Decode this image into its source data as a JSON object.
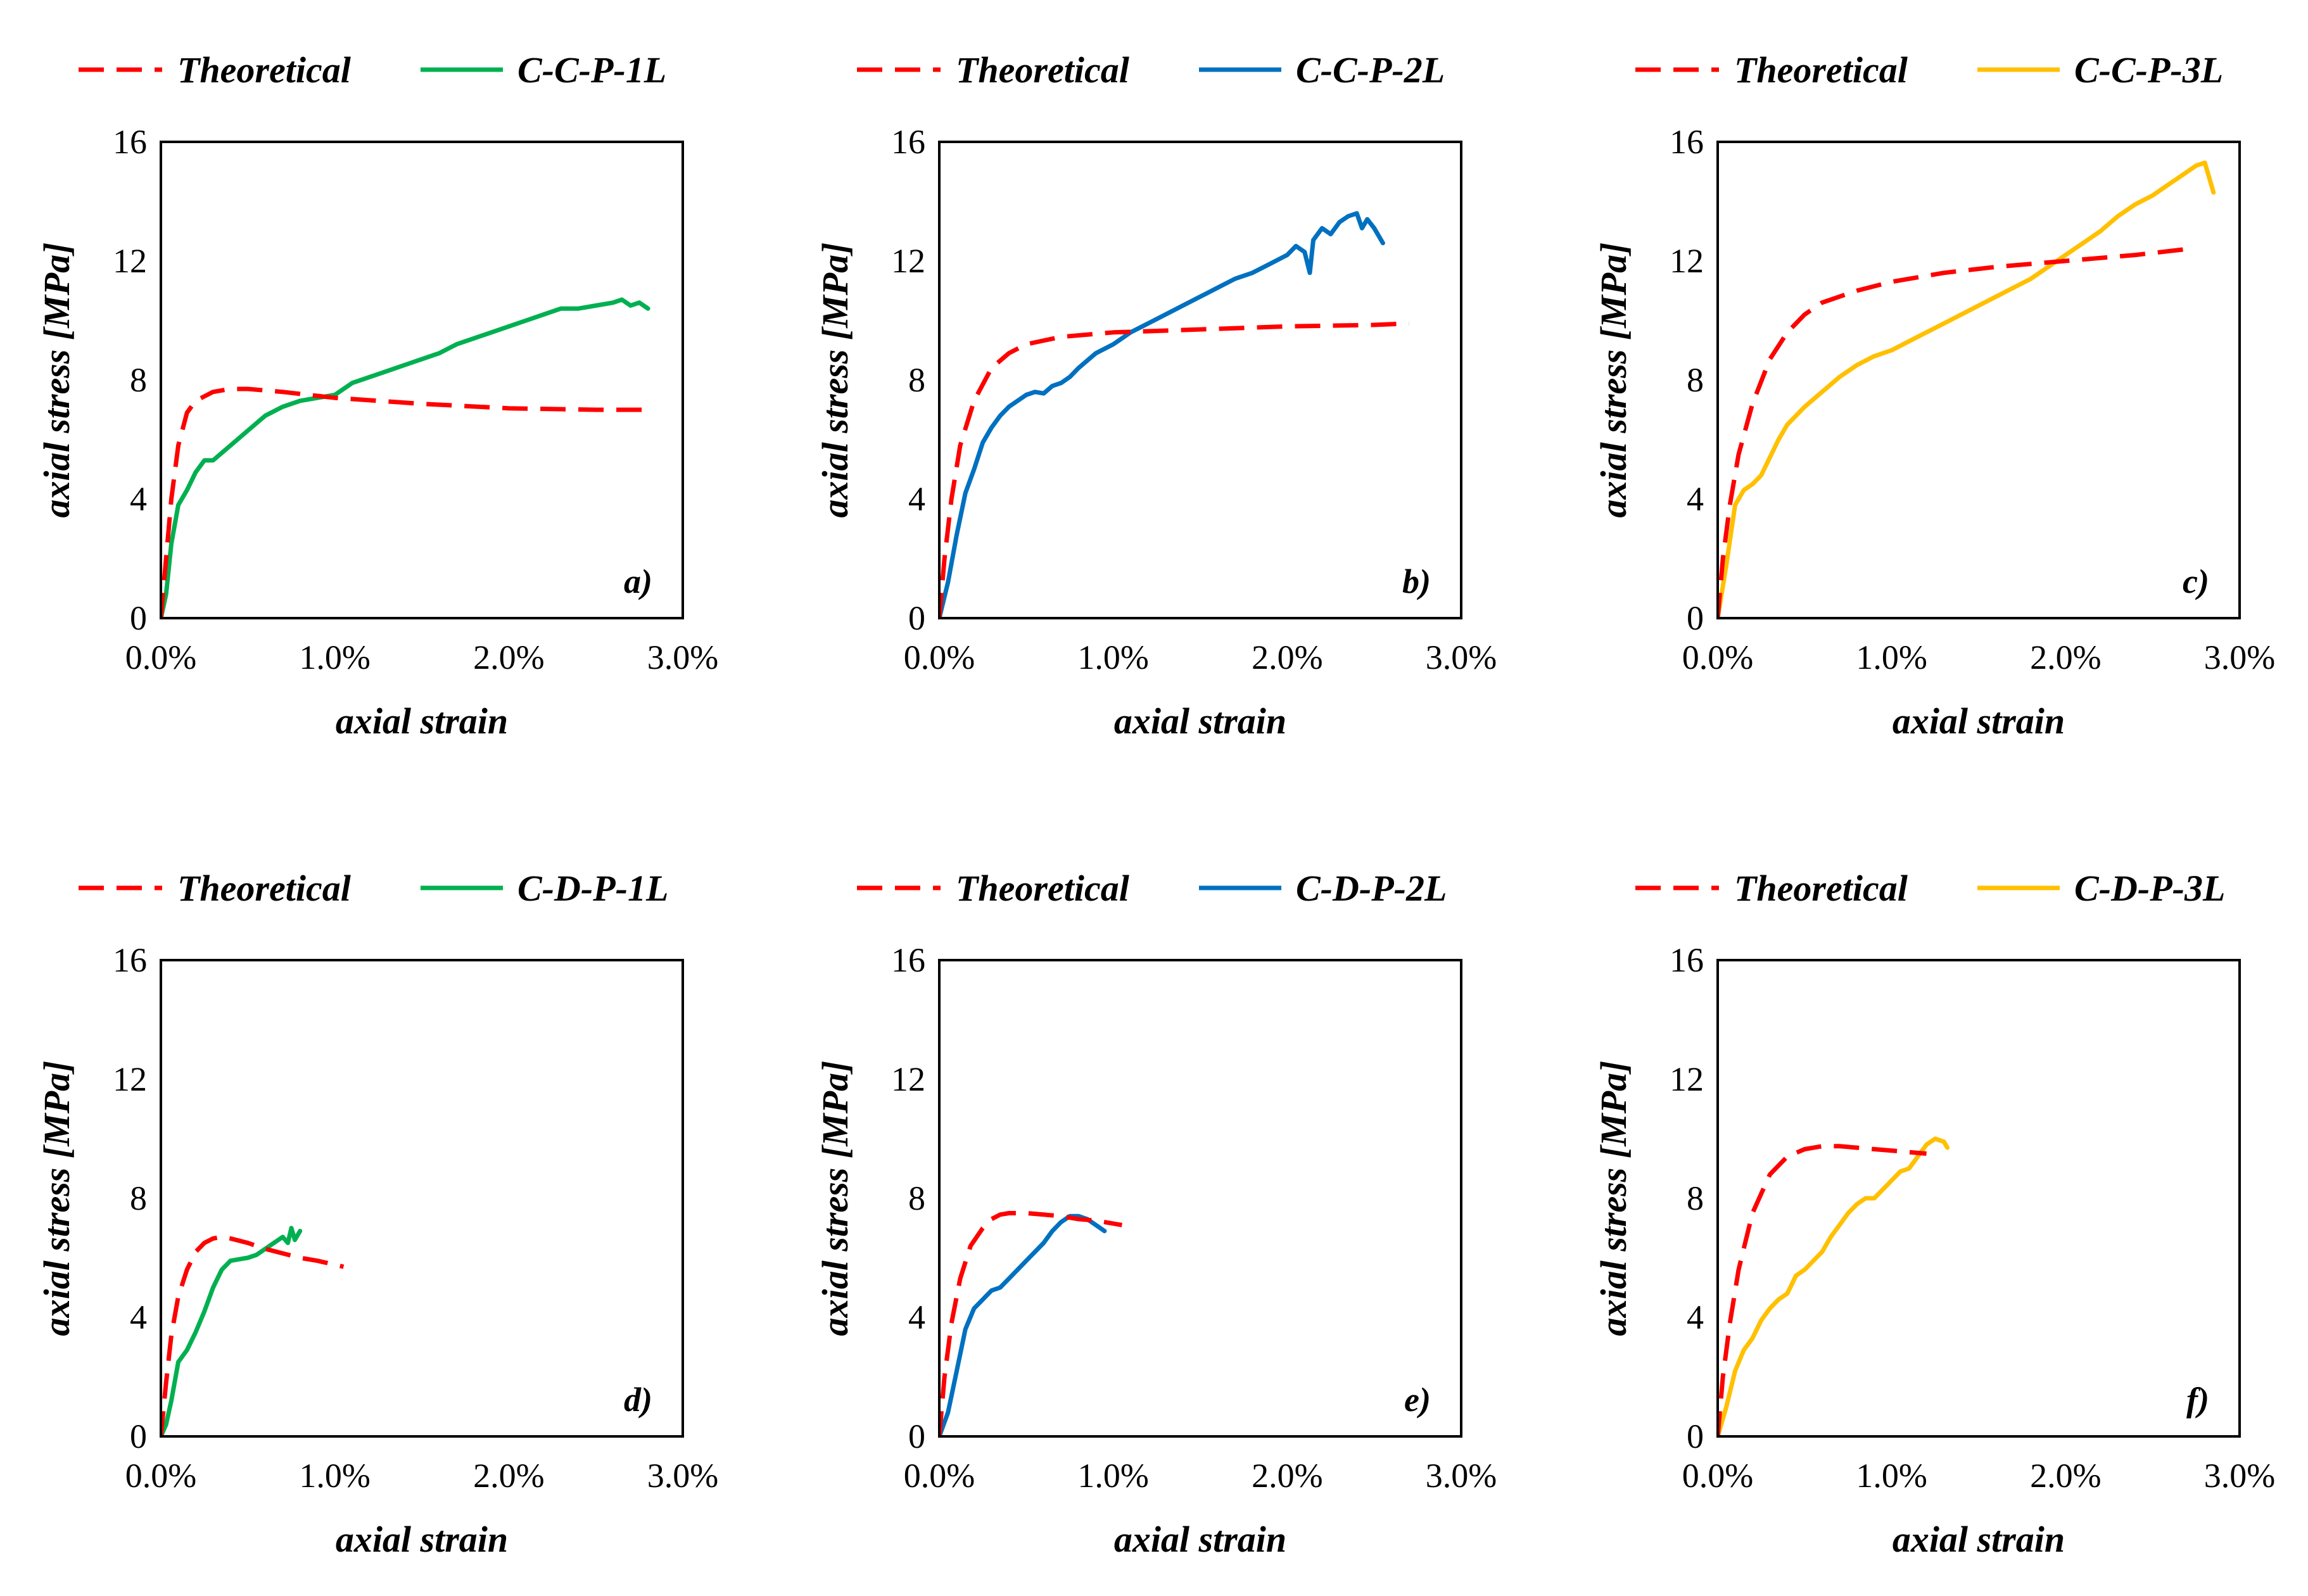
{
  "chart_data": [
    {
      "type": "line",
      "panel_label": "a)",
      "xlabel": "axial strain",
      "ylabel": "axial stress [MPa]",
      "xlim": [
        0,
        3.0
      ],
      "ylim": [
        0,
        16
      ],
      "x_tick_labels": [
        "0.0%",
        "1.0%",
        "2.0%",
        "3.0%"
      ],
      "y_tick_labels": [
        "0",
        "4",
        "8",
        "12",
        "16"
      ],
      "legend": [
        "Theoretical",
        "C-C-P-1L"
      ],
      "series": [
        {
          "name": "Theoretical",
          "color": "#ff0000",
          "style": "dashed",
          "x": [
            0,
            0.03,
            0.06,
            0.1,
            0.15,
            0.2,
            0.3,
            0.4,
            0.5,
            0.7,
            1.0,
            1.5,
            2.0,
            2.5,
            2.78
          ],
          "y": [
            0,
            2.0,
            4.0,
            5.8,
            6.9,
            7.3,
            7.6,
            7.7,
            7.7,
            7.6,
            7.4,
            7.2,
            7.05,
            7.0,
            7.0
          ]
        },
        {
          "name": "C-C-P-1L",
          "color": "#00b050",
          "style": "solid",
          "x": [
            0,
            0.03,
            0.06,
            0.1,
            0.15,
            0.2,
            0.25,
            0.3,
            0.4,
            0.5,
            0.6,
            0.7,
            0.8,
            0.9,
            1.0,
            1.1,
            1.2,
            1.3,
            1.4,
            1.5,
            1.6,
            1.7,
            1.8,
            1.9,
            2.0,
            2.1,
            2.2,
            2.3,
            2.4,
            2.5,
            2.6,
            2.65,
            2.7,
            2.75,
            2.8
          ],
          "y": [
            0,
            0.8,
            2.5,
            3.8,
            4.3,
            4.9,
            5.3,
            5.3,
            5.8,
            6.3,
            6.8,
            7.1,
            7.3,
            7.4,
            7.5,
            7.9,
            8.1,
            8.3,
            8.5,
            8.7,
            8.9,
            9.2,
            9.4,
            9.6,
            9.8,
            10.0,
            10.2,
            10.4,
            10.4,
            10.5,
            10.6,
            10.7,
            10.5,
            10.6,
            10.4
          ]
        }
      ]
    },
    {
      "type": "line",
      "panel_label": "b)",
      "xlabel": "axial strain",
      "ylabel": "axial stress [MPa]",
      "xlim": [
        0,
        3.0
      ],
      "ylim": [
        0,
        16
      ],
      "x_tick_labels": [
        "0.0%",
        "1.0%",
        "2.0%",
        "3.0%"
      ],
      "y_tick_labels": [
        "0",
        "4",
        "8",
        "12",
        "16"
      ],
      "legend": [
        "Theoretical",
        "C-C-P-2L"
      ],
      "series": [
        {
          "name": "Theoretical",
          "color": "#ff0000",
          "style": "dashed",
          "x": [
            0,
            0.03,
            0.07,
            0.12,
            0.2,
            0.3,
            0.4,
            0.5,
            0.7,
            1.0,
            1.5,
            2.0,
            2.5,
            2.7
          ],
          "y": [
            0,
            2.0,
            4.0,
            5.8,
            7.3,
            8.4,
            8.9,
            9.2,
            9.45,
            9.6,
            9.7,
            9.8,
            9.85,
            9.9
          ]
        },
        {
          "name": "C-C-P-2L",
          "color": "#0070c0",
          "style": "solid",
          "x": [
            0,
            0.05,
            0.1,
            0.15,
            0.2,
            0.25,
            0.3,
            0.35,
            0.4,
            0.45,
            0.5,
            0.55,
            0.6,
            0.65,
            0.7,
            0.75,
            0.8,
            0.9,
            1.0,
            1.1,
            1.2,
            1.3,
            1.4,
            1.5,
            1.6,
            1.7,
            1.8,
            1.9,
            2.0,
            2.05,
            2.1,
            2.13,
            2.15,
            2.2,
            2.25,
            2.3,
            2.35,
            2.4,
            2.43,
            2.46,
            2.5,
            2.55
          ],
          "y": [
            0,
            1.2,
            2.8,
            4.2,
            5.0,
            5.9,
            6.4,
            6.8,
            7.1,
            7.3,
            7.5,
            7.6,
            7.55,
            7.8,
            7.9,
            8.1,
            8.4,
            8.9,
            9.2,
            9.6,
            9.9,
            10.2,
            10.5,
            10.8,
            11.1,
            11.4,
            11.6,
            11.9,
            12.2,
            12.5,
            12.3,
            11.6,
            12.7,
            13.1,
            12.9,
            13.3,
            13.5,
            13.6,
            13.1,
            13.4,
            13.1,
            12.6
          ]
        }
      ]
    },
    {
      "type": "line",
      "panel_label": "c)",
      "xlabel": "axial strain",
      "ylabel": "axial stress [MPa]",
      "xlim": [
        0,
        3.0
      ],
      "ylim": [
        0,
        16
      ],
      "x_tick_labels": [
        "0.0%",
        "1.0%",
        "2.0%",
        "3.0%"
      ],
      "y_tick_labels": [
        "0",
        "4",
        "8",
        "12",
        "16"
      ],
      "legend": [
        "Theoretical",
        "C-C-P-3L"
      ],
      "series": [
        {
          "name": "Theoretical",
          "color": "#ff0000",
          "style": "dashed",
          "x": [
            0,
            0.03,
            0.07,
            0.12,
            0.2,
            0.3,
            0.4,
            0.5,
            0.6,
            0.8,
            1.0,
            1.3,
            1.6,
            2.0,
            2.4,
            2.7
          ],
          "y": [
            0,
            2.0,
            3.8,
            5.5,
            7.2,
            8.7,
            9.6,
            10.2,
            10.6,
            11.0,
            11.3,
            11.6,
            11.8,
            12.0,
            12.2,
            12.4
          ]
        },
        {
          "name": "C-C-P-3L",
          "color": "#ffc000",
          "style": "solid",
          "x": [
            0,
            0.05,
            0.1,
            0.15,
            0.2,
            0.25,
            0.3,
            0.35,
            0.4,
            0.5,
            0.6,
            0.7,
            0.8,
            0.9,
            1.0,
            1.1,
            1.2,
            1.3,
            1.4,
            1.5,
            1.6,
            1.7,
            1.8,
            1.9,
            2.0,
            2.1,
            2.2,
            2.3,
            2.4,
            2.5,
            2.6,
            2.65,
            2.7,
            2.75,
            2.8,
            2.85
          ],
          "y": [
            0,
            1.8,
            3.8,
            4.3,
            4.5,
            4.8,
            5.4,
            6.0,
            6.5,
            7.1,
            7.6,
            8.1,
            8.5,
            8.8,
            9.0,
            9.3,
            9.6,
            9.9,
            10.2,
            10.5,
            10.8,
            11.1,
            11.4,
            11.8,
            12.2,
            12.6,
            13.0,
            13.5,
            13.9,
            14.2,
            14.6,
            14.8,
            15.0,
            15.2,
            15.3,
            14.3
          ]
        }
      ]
    },
    {
      "type": "line",
      "panel_label": "d)",
      "xlabel": "axial strain",
      "ylabel": "axial stress [MPa]",
      "xlim": [
        0,
        3.0
      ],
      "ylim": [
        0,
        16
      ],
      "x_tick_labels": [
        "0.0%",
        "1.0%",
        "2.0%",
        "3.0%"
      ],
      "y_tick_labels": [
        "0",
        "4",
        "8",
        "12",
        "16"
      ],
      "legend": [
        "Theoretical",
        "C-D-P-1L"
      ],
      "series": [
        {
          "name": "Theoretical",
          "color": "#ff0000",
          "style": "dashed",
          "x": [
            0,
            0.03,
            0.06,
            0.1,
            0.15,
            0.2,
            0.25,
            0.3,
            0.35,
            0.4,
            0.5,
            0.6,
            0.7,
            0.8,
            0.9,
            1.05
          ],
          "y": [
            0,
            1.8,
            3.4,
            4.7,
            5.6,
            6.2,
            6.5,
            6.65,
            6.7,
            6.65,
            6.5,
            6.3,
            6.15,
            6.0,
            5.9,
            5.7
          ]
        },
        {
          "name": "C-D-P-1L",
          "color": "#00b050",
          "style": "solid",
          "x": [
            0,
            0.03,
            0.06,
            0.1,
            0.15,
            0.2,
            0.25,
            0.3,
            0.35,
            0.4,
            0.45,
            0.5,
            0.55,
            0.6,
            0.65,
            0.7,
            0.73,
            0.75,
            0.77,
            0.8
          ],
          "y": [
            0,
            0.4,
            1.2,
            2.5,
            2.9,
            3.5,
            4.2,
            5.0,
            5.6,
            5.9,
            5.95,
            6.0,
            6.1,
            6.3,
            6.5,
            6.7,
            6.5,
            7.0,
            6.6,
            6.9
          ]
        }
      ]
    },
    {
      "type": "line",
      "panel_label": "e)",
      "xlabel": "axial strain",
      "ylabel": "axial stress [MPa]",
      "xlim": [
        0,
        3.0
      ],
      "ylim": [
        0,
        16
      ],
      "x_tick_labels": [
        "0.0%",
        "1.0%",
        "2.0%",
        "3.0%"
      ],
      "y_tick_labels": [
        "0",
        "4",
        "8",
        "12",
        "16"
      ],
      "legend": [
        "Theoretical",
        "C-D-P-2L"
      ],
      "series": [
        {
          "name": "Theoretical",
          "color": "#ff0000",
          "style": "dashed",
          "x": [
            0,
            0.03,
            0.07,
            0.12,
            0.18,
            0.25,
            0.3,
            0.35,
            0.4,
            0.5,
            0.6,
            0.7,
            0.8,
            0.9,
            1.05
          ],
          "y": [
            0,
            2.0,
            3.8,
            5.3,
            6.4,
            7.0,
            7.3,
            7.45,
            7.5,
            7.5,
            7.45,
            7.4,
            7.3,
            7.25,
            7.1
          ]
        },
        {
          "name": "C-D-P-2L",
          "color": "#0070c0",
          "style": "solid",
          "x": [
            0,
            0.05,
            0.1,
            0.15,
            0.2,
            0.25,
            0.3,
            0.35,
            0.4,
            0.45,
            0.5,
            0.55,
            0.6,
            0.65,
            0.7,
            0.75,
            0.8,
            0.85,
            0.9,
            0.95
          ],
          "y": [
            0,
            0.8,
            2.2,
            3.6,
            4.3,
            4.6,
            4.9,
            5.0,
            5.3,
            5.6,
            5.9,
            6.2,
            6.5,
            6.9,
            7.2,
            7.4,
            7.4,
            7.3,
            7.1,
            6.9
          ]
        }
      ]
    },
    {
      "type": "line",
      "panel_label": "f)",
      "xlabel": "axial strain",
      "ylabel": "axial stress [MPa]",
      "xlim": [
        0,
        3.0
      ],
      "ylim": [
        0,
        16
      ],
      "x_tick_labels": [
        "0.0%",
        "1.0%",
        "2.0%",
        "3.0%"
      ],
      "y_tick_labels": [
        "0",
        "4",
        "8",
        "12",
        "16"
      ],
      "legend": [
        "Theoretical",
        "C-D-P-3L"
      ],
      "series": [
        {
          "name": "Theoretical",
          "color": "#ff0000",
          "style": "dashed",
          "x": [
            0,
            0.03,
            0.07,
            0.12,
            0.2,
            0.3,
            0.4,
            0.5,
            0.6,
            0.7,
            0.8,
            0.9,
            1.0,
            1.2
          ],
          "y": [
            0,
            2.0,
            3.8,
            5.6,
            7.5,
            8.8,
            9.4,
            9.65,
            9.75,
            9.75,
            9.7,
            9.65,
            9.6,
            9.5
          ]
        },
        {
          "name": "C-D-P-3L",
          "color": "#ffc000",
          "style": "solid",
          "x": [
            0,
            0.05,
            0.1,
            0.15,
            0.2,
            0.25,
            0.3,
            0.35,
            0.4,
            0.45,
            0.5,
            0.55,
            0.6,
            0.65,
            0.7,
            0.75,
            0.8,
            0.85,
            0.9,
            0.95,
            1.0,
            1.05,
            1.1,
            1.15,
            1.2,
            1.25,
            1.3,
            1.32
          ],
          "y": [
            0,
            1.0,
            2.2,
            2.9,
            3.3,
            3.9,
            4.3,
            4.6,
            4.8,
            5.4,
            5.6,
            5.9,
            6.2,
            6.7,
            7.1,
            7.5,
            7.8,
            8.0,
            8.0,
            8.3,
            8.6,
            8.9,
            9.0,
            9.4,
            9.8,
            10.0,
            9.9,
            9.7
          ]
        }
      ]
    }
  ]
}
